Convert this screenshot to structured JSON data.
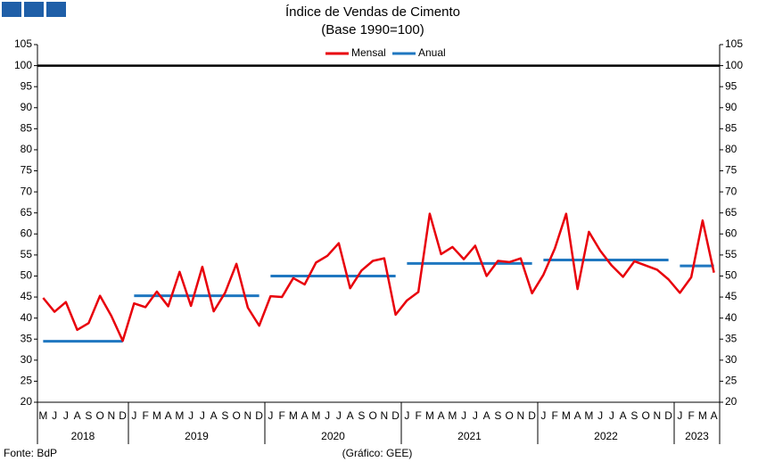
{
  "chart_data": {
    "type": "line",
    "title": "Índice de Vendas de Cimento",
    "subtitle": "(Base 1990=100)",
    "groups": [
      {
        "label": "2018",
        "months": [
          "M",
          "J",
          "J",
          "A",
          "S",
          "O",
          "N",
          "D"
        ]
      },
      {
        "label": "2019",
        "months": [
          "J",
          "F",
          "M",
          "A",
          "M",
          "J",
          "J",
          "A",
          "S",
          "O",
          "N",
          "D"
        ]
      },
      {
        "label": "2020",
        "months": [
          "J",
          "F",
          "M",
          "A",
          "M",
          "J",
          "J",
          "A",
          "S",
          "O",
          "N",
          "D"
        ]
      },
      {
        "label": "2021",
        "months": [
          "J",
          "F",
          "M",
          "A",
          "M",
          "J",
          "J",
          "A",
          "S",
          "O",
          "N",
          "D"
        ]
      },
      {
        "label": "2022",
        "months": [
          "J",
          "F",
          "M",
          "A",
          "M",
          "J",
          "J",
          "A",
          "S",
          "O",
          "N",
          "D"
        ]
      },
      {
        "label": "2023",
        "months": [
          "J",
          "F",
          "M",
          "A"
        ]
      }
    ],
    "series": [
      {
        "name": "Mensal",
        "color": "#e8000b",
        "values": [
          44.8,
          41.5,
          43.8,
          37.2,
          38.8,
          45.3,
          40.5,
          34.6,
          43.5,
          42.6,
          46.3,
          42.8,
          51.0,
          42.9,
          52.2,
          41.6,
          46.0,
          52.9,
          42.5,
          38.2,
          45.2,
          45.0,
          49.5,
          48.0,
          53.2,
          54.8,
          57.8,
          47.1,
          51.3,
          53.6,
          54.2,
          40.8,
          44.2,
          46.2,
          64.8,
          55.2,
          56.9,
          54.0,
          57.2,
          50.0,
          53.6,
          53.3,
          54.2,
          45.9,
          50.3,
          56.5,
          64.8,
          46.9,
          60.5,
          56.0,
          52.5,
          49.8,
          53.5,
          52.5,
          51.5,
          49.2,
          46.0,
          49.7,
          63.2,
          50.8
        ]
      },
      {
        "name": "Anual",
        "color": "#1f77c0",
        "values": [
          34.5,
          45.3,
          50.0,
          53.0,
          53.8,
          52.4
        ]
      }
    ],
    "reference_line": {
      "value": 100,
      "color": "#000000"
    },
    "ylim": [
      20,
      105
    ],
    "yticks": [
      20,
      25,
      30,
      35,
      40,
      45,
      50,
      55,
      60,
      65,
      70,
      75,
      80,
      85,
      90,
      95,
      100,
      105
    ],
    "legend": "top",
    "source": "Fonte: BdP",
    "credit": "(Gráfico: GEE)"
  }
}
